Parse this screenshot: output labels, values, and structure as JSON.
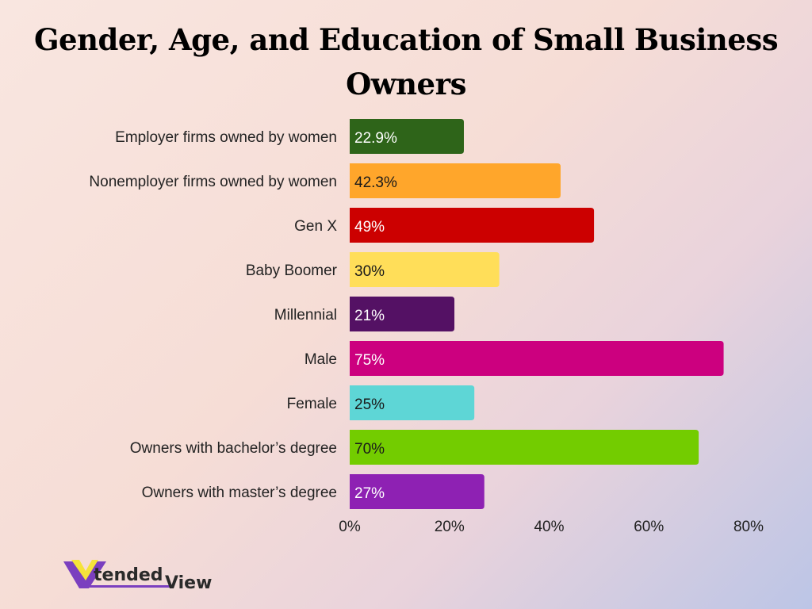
{
  "chart_data": {
    "type": "bar",
    "orientation": "horizontal",
    "title": "Gender, Age, and Education of Small Business Owners",
    "categories": [
      "Employer firms owned by women",
      "Nonemployer firms owned by women",
      "Gen X",
      "Baby Boomer",
      "Millennial",
      "Male",
      "Female",
      "Owners with bachelor’s degree",
      "Owners with master’s degree"
    ],
    "values": [
      22.9,
      42.3,
      49,
      30,
      21,
      75,
      25,
      70,
      27
    ],
    "data_labels": [
      "22.9%",
      "42.3%",
      "49%",
      "30%",
      "21%",
      "75%",
      "25%",
      "70%",
      "27%"
    ],
    "colors": [
      "#2e6419",
      "#ffa62b",
      "#cc0000",
      "#ffde59",
      "#541164",
      "#cc007f",
      "#5ed6d6",
      "#73cc00",
      "#8e21b3"
    ],
    "label_colors": [
      "#ffffff",
      "#1a1a1a",
      "#ffffff",
      "#1a1a1a",
      "#ffffff",
      "#ffffff",
      "#1a1a1a",
      "#1a1a1a",
      "#ffffff"
    ],
    "xlim": [
      0,
      80
    ],
    "x_ticks": [
      "0%",
      "20%",
      "40%",
      "60%",
      "80%"
    ],
    "grid": false,
    "legend": "none"
  },
  "logo": {
    "text": "XtendedView"
  }
}
